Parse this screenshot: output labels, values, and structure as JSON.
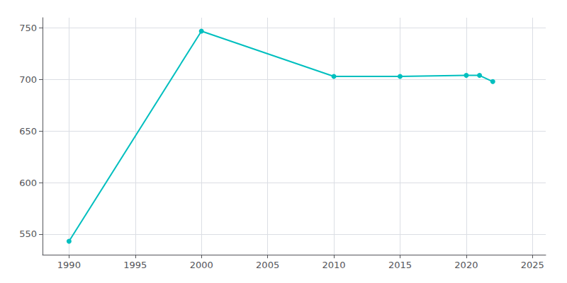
{
  "chart_data": {
    "type": "line",
    "x": [
      1990,
      2000,
      2010,
      2015,
      2020,
      2021,
      2022
    ],
    "values": [
      543,
      747,
      703,
      703,
      704,
      704,
      698
    ],
    "color": "#00BFBF",
    "marker": "circle",
    "xlim": [
      1988,
      2026
    ],
    "ylim": [
      530,
      760
    ],
    "xticks": [
      1990,
      1995,
      2000,
      2005,
      2010,
      2015,
      2020,
      2025
    ],
    "yticks": [
      550,
      600,
      650,
      700,
      750
    ],
    "grid": true
  }
}
